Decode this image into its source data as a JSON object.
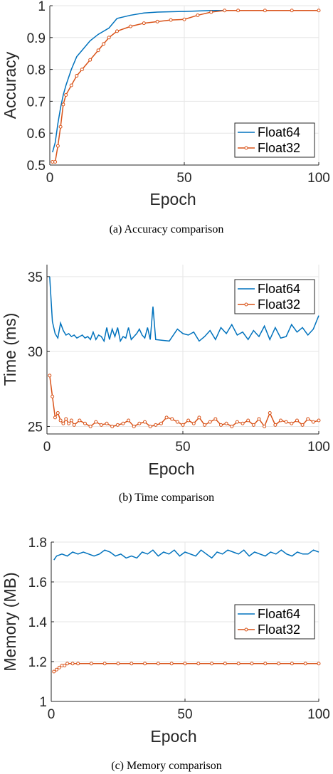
{
  "colors": {
    "float64": "#0072bd",
    "float32": "#d95319"
  },
  "chart_data": [
    {
      "type": "line",
      "caption": "(a)  Accuracy comparison",
      "xlabel": "Epoch",
      "ylabel": "Accuracy",
      "xlim": [
        0,
        100
      ],
      "ylim": [
        0.5,
        1.0
      ],
      "xticks": [
        "0",
        "50",
        "100"
      ],
      "yticks": [
        "0.5",
        "0.6",
        "0.7",
        "0.8",
        "0.9",
        "1"
      ],
      "ytick_values": [
        0.5,
        0.6,
        0.7,
        0.8,
        0.9,
        1.0
      ],
      "grid": true,
      "legend_position": "right",
      "series": [
        {
          "name": "Float64",
          "x": [
            1,
            2,
            3,
            4,
            5,
            6,
            8,
            10,
            12,
            15,
            18,
            20,
            22,
            25,
            30,
            35,
            40,
            50,
            60,
            70,
            80,
            90,
            100
          ],
          "y": [
            0.54,
            0.57,
            0.63,
            0.68,
            0.72,
            0.75,
            0.8,
            0.84,
            0.86,
            0.89,
            0.91,
            0.92,
            0.93,
            0.96,
            0.97,
            0.977,
            0.98,
            0.982,
            0.985,
            0.985,
            0.985,
            0.985,
            0.985
          ]
        },
        {
          "name": "Float32",
          "x": [
            1,
            2,
            3,
            4,
            5,
            6,
            8,
            10,
            12,
            15,
            18,
            20,
            22,
            25,
            30,
            35,
            40,
            45,
            50,
            55,
            60,
            65,
            70,
            80,
            90,
            100
          ],
          "y": [
            0.51,
            0.51,
            0.56,
            0.62,
            0.69,
            0.72,
            0.75,
            0.78,
            0.8,
            0.83,
            0.86,
            0.88,
            0.9,
            0.92,
            0.935,
            0.945,
            0.95,
            0.955,
            0.957,
            0.97,
            0.98,
            0.985,
            0.985,
            0.985,
            0.985,
            0.985
          ]
        }
      ]
    },
    {
      "type": "line",
      "caption": "(b)  Time comparison",
      "xlabel": "Epoch",
      "ylabel": "Time (ms)",
      "xlim": [
        0,
        100
      ],
      "ylim": [
        24.5,
        35.8
      ],
      "xticks": [
        "0",
        "50",
        "100"
      ],
      "yticks": [
        "25",
        "30",
        "35"
      ],
      "ytick_values": [
        25,
        30,
        35
      ],
      "grid": true,
      "legend_position": "top-right",
      "series": [
        {
          "name": "Float64",
          "x": [
            1,
            2,
            3,
            4,
            5,
            6,
            7,
            8,
            9,
            10,
            11,
            12,
            13,
            14,
            15,
            16,
            17,
            18,
            19,
            20,
            21,
            22,
            23,
            24,
            25,
            26,
            27,
            28,
            29,
            30,
            31,
            32,
            33,
            34,
            35,
            36,
            37,
            38,
            39,
            40,
            45,
            48,
            50,
            52,
            54,
            56,
            58,
            60,
            62,
            64,
            66,
            68,
            70,
            72,
            74,
            76,
            78,
            80,
            82,
            84,
            86,
            88,
            90,
            92,
            94,
            96,
            98,
            100
          ],
          "y": [
            35.0,
            32.0,
            31.2,
            30.9,
            31.9,
            31.4,
            31.1,
            31.2,
            31.0,
            31.1,
            30.9,
            31.0,
            31.1,
            30.9,
            31.0,
            30.8,
            31.3,
            30.8,
            31.1,
            31.0,
            30.7,
            31.6,
            30.8,
            31.5,
            31.0,
            31.6,
            30.7,
            31.0,
            30.9,
            31.6,
            30.8,
            31.0,
            31.2,
            31.5,
            31.1,
            30.9,
            31.6,
            30.8,
            33.0,
            30.8,
            30.7,
            31.5,
            31.2,
            31.1,
            31.3,
            30.7,
            31.0,
            31.4,
            30.8,
            31.6,
            31.2,
            31.8,
            31.1,
            31.3,
            30.8,
            31.4,
            31.0,
            31.7,
            30.8,
            31.6,
            30.9,
            31.0,
            31.8,
            31.3,
            31.6,
            31.1,
            31.5,
            32.4
          ]
        },
        {
          "name": "Float32",
          "x": [
            1,
            2,
            3,
            4,
            5,
            6,
            7,
            8,
            9,
            10,
            12,
            14,
            16,
            18,
            20,
            22,
            24,
            26,
            28,
            30,
            32,
            34,
            36,
            38,
            40,
            42,
            44,
            46,
            48,
            50,
            52,
            54,
            56,
            58,
            60,
            62,
            64,
            66,
            68,
            70,
            72,
            74,
            76,
            78,
            80,
            82,
            84,
            86,
            88,
            90,
            92,
            94,
            96,
            98,
            100
          ],
          "y": [
            28.4,
            27.0,
            25.6,
            25.9,
            25.4,
            25.2,
            25.5,
            25.2,
            25.4,
            25.1,
            25.4,
            25.2,
            25.0,
            25.3,
            25.1,
            25.2,
            25.0,
            25.1,
            25.2,
            25.4,
            25.0,
            25.2,
            25.3,
            25.0,
            25.1,
            25.2,
            25.6,
            25.5,
            25.3,
            25.1,
            25.4,
            25.2,
            25.6,
            25.1,
            25.3,
            25.5,
            25.1,
            25.2,
            25.0,
            25.3,
            25.2,
            25.4,
            25.1,
            25.5,
            25.0,
            25.9,
            25.1,
            25.4,
            25.3,
            25.2,
            25.4,
            25.1,
            25.5,
            25.3,
            25.4
          ]
        }
      ]
    },
    {
      "type": "line",
      "caption": "(c)  Memory comparison",
      "xlabel": "Epoch",
      "ylabel": "Memory (MB)",
      "xlim": [
        0,
        100
      ],
      "ylim": [
        1.0,
        1.8
      ],
      "xticks": [
        "0",
        "50",
        "100"
      ],
      "yticks": [
        "1",
        "1.2",
        "1.4",
        "1.6",
        "1.8"
      ],
      "ytick_values": [
        1.0,
        1.2,
        1.4,
        1.6,
        1.8
      ],
      "grid": true,
      "legend_position": "right",
      "series": [
        {
          "name": "Float64",
          "x": [
            1,
            2,
            4,
            6,
            8,
            10,
            12,
            14,
            16,
            18,
            20,
            22,
            24,
            26,
            28,
            30,
            32,
            34,
            36,
            38,
            40,
            42,
            44,
            46,
            48,
            50,
            52,
            54,
            56,
            58,
            60,
            62,
            64,
            66,
            68,
            70,
            72,
            74,
            76,
            78,
            80,
            82,
            84,
            86,
            88,
            90,
            92,
            94,
            96,
            98,
            100
          ],
          "y": [
            1.71,
            1.73,
            1.74,
            1.73,
            1.75,
            1.74,
            1.75,
            1.74,
            1.73,
            1.74,
            1.76,
            1.75,
            1.73,
            1.74,
            1.72,
            1.73,
            1.72,
            1.75,
            1.74,
            1.76,
            1.73,
            1.75,
            1.74,
            1.76,
            1.73,
            1.75,
            1.74,
            1.73,
            1.76,
            1.74,
            1.72,
            1.75,
            1.74,
            1.76,
            1.75,
            1.74,
            1.76,
            1.73,
            1.75,
            1.74,
            1.73,
            1.75,
            1.74,
            1.76,
            1.74,
            1.73,
            1.75,
            1.74,
            1.74,
            1.76,
            1.75
          ]
        },
        {
          "name": "Float32",
          "x": [
            1,
            2,
            3,
            4,
            5,
            6,
            8,
            10,
            15,
            20,
            25,
            30,
            35,
            40,
            45,
            50,
            55,
            60,
            65,
            70,
            75,
            80,
            85,
            90,
            95,
            100
          ],
          "y": [
            1.15,
            1.16,
            1.17,
            1.18,
            1.18,
            1.19,
            1.19,
            1.19,
            1.19,
            1.19,
            1.19,
            1.19,
            1.19,
            1.19,
            1.19,
            1.19,
            1.19,
            1.19,
            1.19,
            1.19,
            1.19,
            1.19,
            1.19,
            1.19,
            1.19,
            1.19
          ]
        }
      ]
    }
  ]
}
